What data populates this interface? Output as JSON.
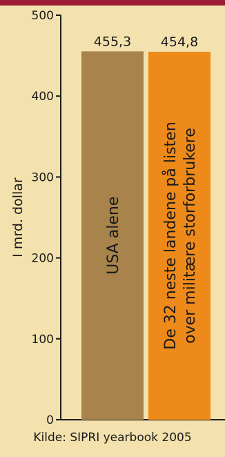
{
  "header": {
    "accent_color": "#9b1c33"
  },
  "source": "Kilde: SIPRI yearbook 2005",
  "chart_data": {
    "type": "bar",
    "title": "",
    "ylabel": "I mrd. dollar",
    "xlabel": "",
    "ylim": [
      0,
      500
    ],
    "yticks": [
      "0",
      "100",
      "200",
      "300",
      "400",
      "500"
    ],
    "grid": false,
    "legend": "none",
    "categories": [
      "USA alene",
      "De 32 neste landene på listen over militære storforbrukere"
    ],
    "values": [
      455.3,
      454.8
    ],
    "value_labels": [
      "455,3",
      "454,8"
    ],
    "bar_text_lines": [
      [
        "USA alene"
      ],
      [
        "De 32 neste landene på listen",
        "over militære storforbrukere"
      ]
    ],
    "colors": [
      "#a8844c",
      "#ee8a1a"
    ],
    "background": "#f3e2ae"
  }
}
